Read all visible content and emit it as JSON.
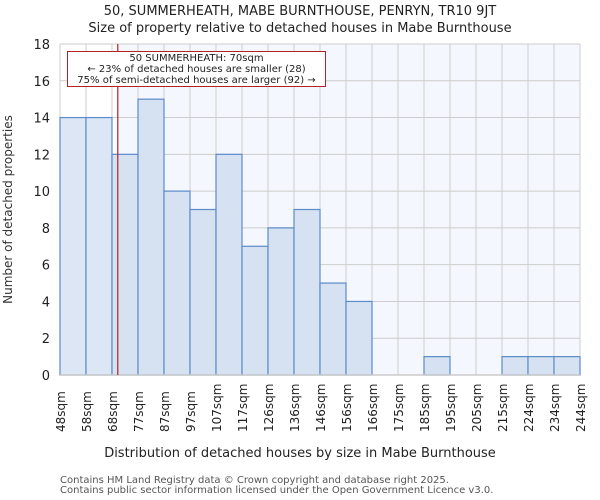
{
  "chart_data": {
    "type": "bar",
    "title": "50, SUMMERHEATH, MABE BURNTHOUSE, PENRYN, TR10 9JT",
    "subtitle": "Size of property relative to detached houses in Mabe Burnthouse",
    "xlabel": "Distribution of detached houses by size in Mabe Burnthouse",
    "ylabel": "Number of detached properties",
    "ylim": [
      0,
      18
    ],
    "yticks": [
      "0",
      "2",
      "4",
      "6",
      "8",
      "10",
      "12",
      "14",
      "16",
      "18"
    ],
    "categories": [
      "48sqm",
      "58sqm",
      "68sqm",
      "77sqm",
      "87sqm",
      "97sqm",
      "107sqm",
      "117sqm",
      "126sqm",
      "136sqm",
      "146sqm",
      "156sqm",
      "166sqm",
      "175sqm",
      "185sqm",
      "195sqm",
      "205sqm",
      "215sqm",
      "224sqm",
      "234sqm",
      "244sqm"
    ],
    "values": [
      14,
      14,
      12,
      15,
      10,
      9,
      12,
      7,
      8,
      9,
      5,
      4,
      0,
      0,
      1,
      0,
      0,
      1,
      1,
      1
    ],
    "grid": true,
    "property_marker": {
      "label": "50 SUMMERHEATH: 70sqm",
      "value_sqm": 70,
      "color": "#b22222"
    },
    "annotation": {
      "line1": "50 SUMMERHEATH: 70sqm",
      "line2": "← 23% of detached houses are smaller (28)",
      "line3": "75% of semi-detached houses are larger (92) →"
    },
    "colors": {
      "bar_fill_left": "#dce6f4",
      "bar_fill_right": "#d6e1f2",
      "bar_edge": "#5b8bc9",
      "plot_bg_right": "#f4f7fd",
      "marker": "#b22222"
    }
  },
  "header": {
    "title": "50, SUMMERHEATH, MABE BURNTHOUSE, PENRYN, TR10 9JT",
    "subtitle": "Size of property relative to detached houses in Mabe Burnthouse"
  },
  "footer": {
    "line1": "Contains HM Land Registry data © Crown copyright and database right 2025.",
    "line2": "Contains public sector information licensed under the Open Government Licence v3.0."
  }
}
